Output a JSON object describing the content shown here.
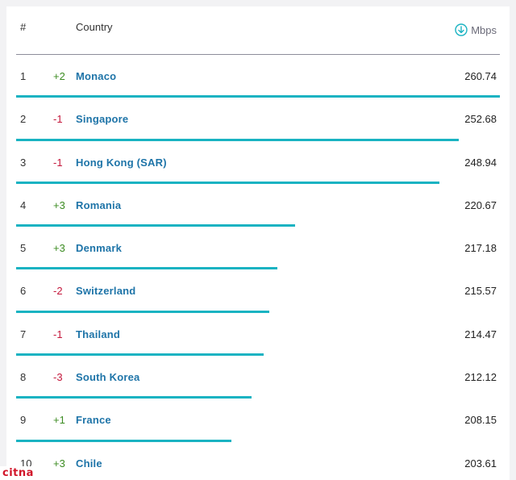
{
  "header": {
    "rank_label": "#",
    "country_label": "Country",
    "speed_label": "Mbps",
    "speed_icon": "download-arrow-icon"
  },
  "colors": {
    "bar": "#1ab3c2",
    "country_link": "#1e74a8",
    "change_up": "#3c8c22",
    "change_down": "#c4183c"
  },
  "scale_max": 260.74,
  "rows": [
    {
      "rank": "1",
      "change": "+2",
      "dir": "up",
      "country": "Monaco",
      "speed": "260.74"
    },
    {
      "rank": "2",
      "change": "-1",
      "dir": "down",
      "country": "Singapore",
      "speed": "252.68"
    },
    {
      "rank": "3",
      "change": "-1",
      "dir": "down",
      "country": "Hong Kong (SAR)",
      "speed": "248.94"
    },
    {
      "rank": "4",
      "change": "+3",
      "dir": "up",
      "country": "Romania",
      "speed": "220.67"
    },
    {
      "rank": "5",
      "change": "+3",
      "dir": "up",
      "country": "Denmark",
      "speed": "217.18"
    },
    {
      "rank": "6",
      "change": "-2",
      "dir": "down",
      "country": "Switzerland",
      "speed": "215.57"
    },
    {
      "rank": "7",
      "change": "-1",
      "dir": "down",
      "country": "Thailand",
      "speed": "214.47"
    },
    {
      "rank": "8",
      "change": "-3",
      "dir": "down",
      "country": "South Korea",
      "speed": "212.12"
    },
    {
      "rank": "9",
      "change": "+1",
      "dir": "up",
      "country": "France",
      "speed": "208.15"
    },
    {
      "rank": "10",
      "change": "+3",
      "dir": "up",
      "country": "Chile",
      "speed": "203.61"
    }
  ],
  "watermark": "citna"
}
